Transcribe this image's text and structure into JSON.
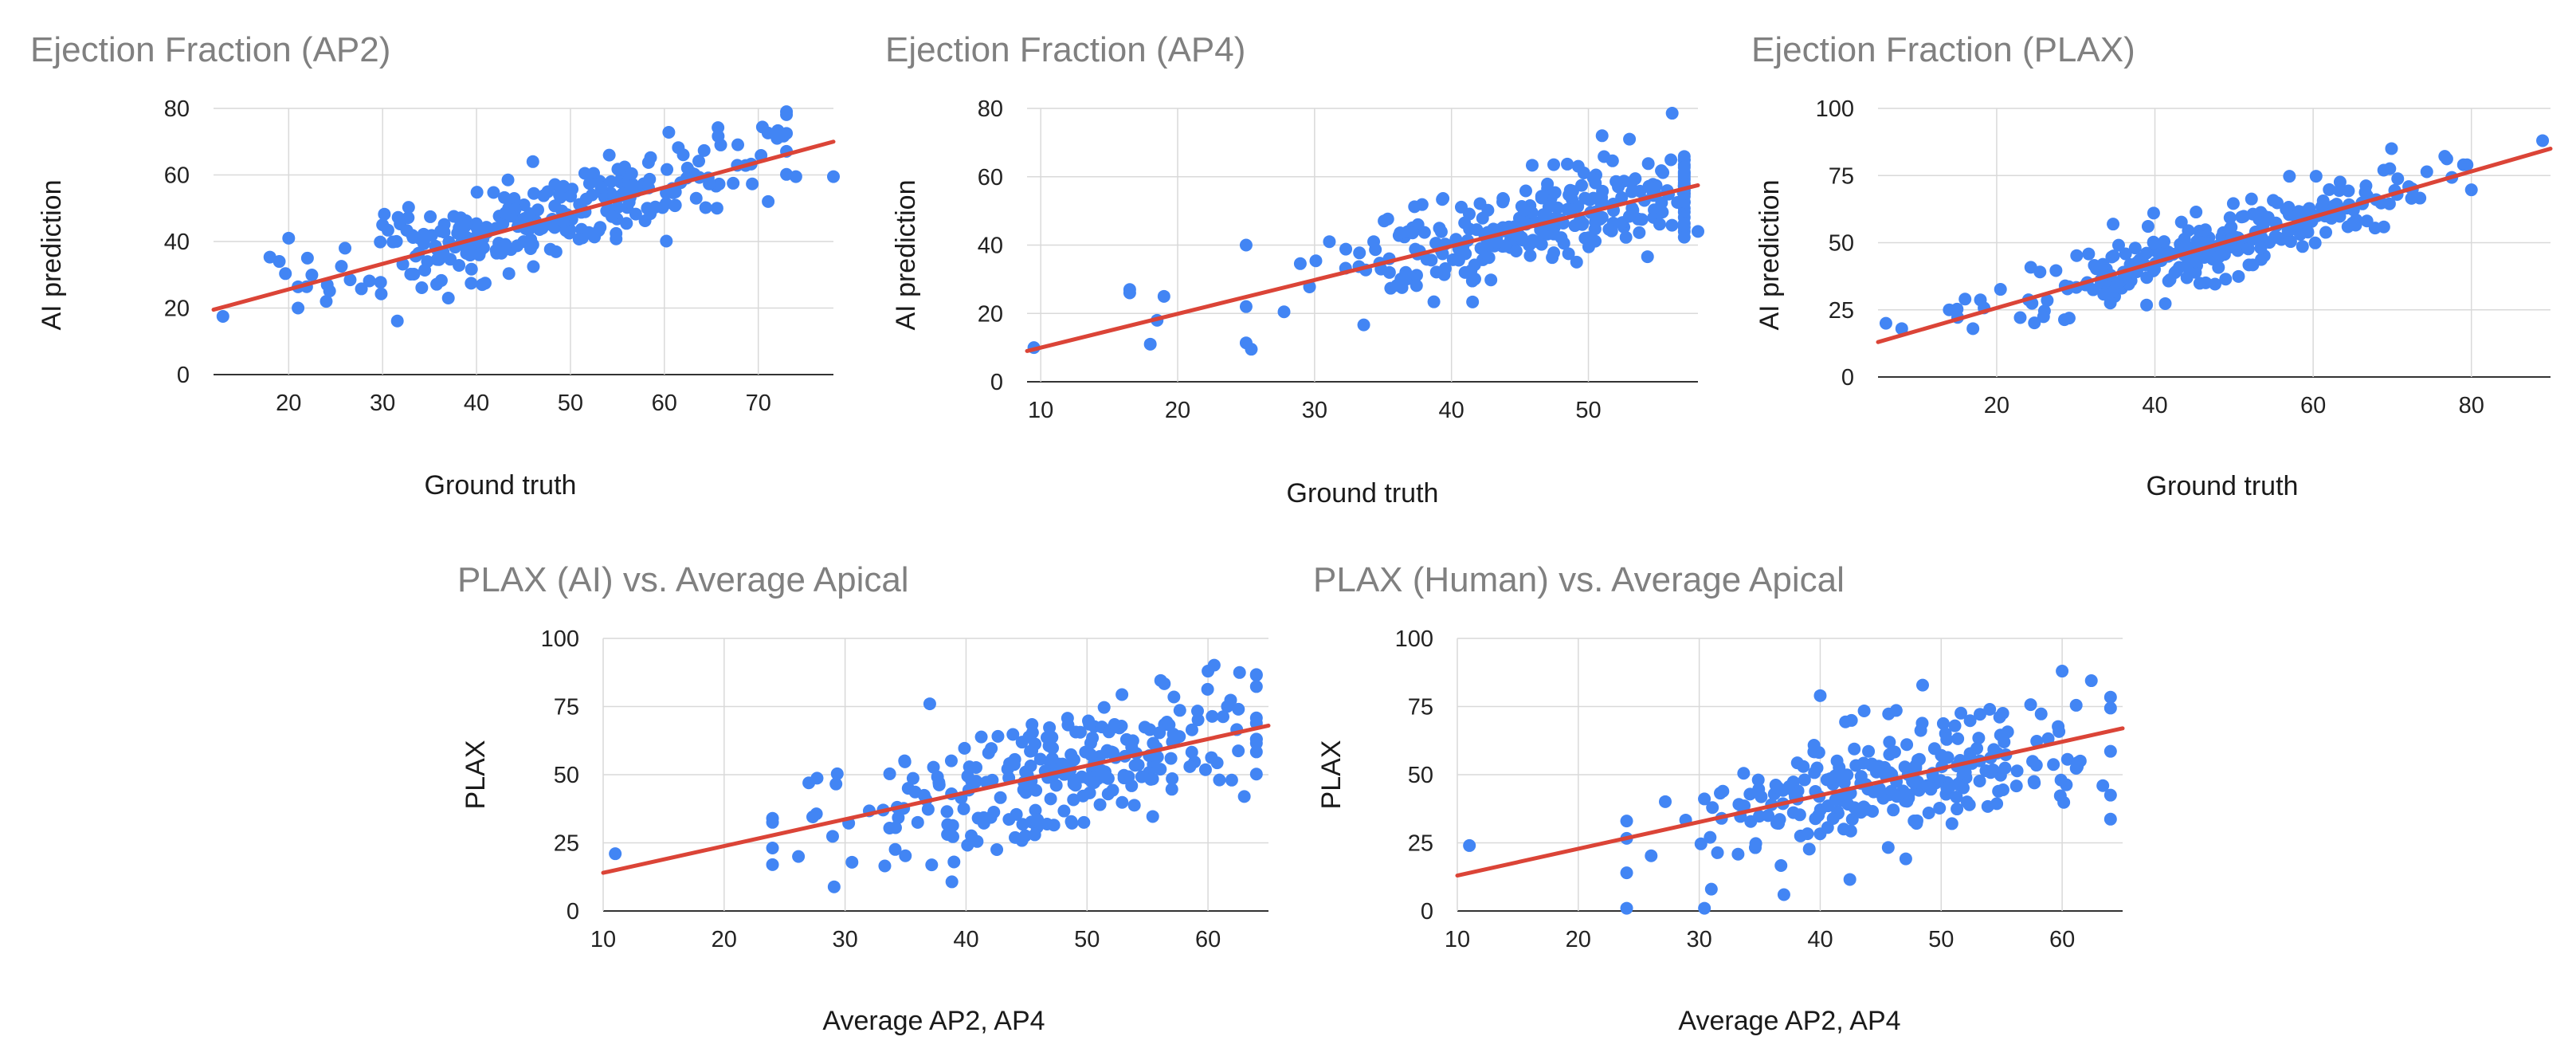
{
  "colors": {
    "points": "#4285f4",
    "trendline": "#db4437",
    "title": "#808080",
    "grid": "#d9d9d9"
  },
  "chart_data": [
    {
      "type": "scatter",
      "title": "Ejection Fraction (AP2)",
      "xlabel": "Ground truth",
      "ylabel": "AI prediction",
      "xlim": [
        12,
        78
      ],
      "ylim": [
        0,
        80
      ],
      "xticks": [
        20,
        30,
        40,
        50,
        60,
        70
      ],
      "yticks": [
        0,
        20,
        40,
        60,
        80
      ],
      "trendline": {
        "x": [
          12,
          78
        ],
        "y": [
          19.5,
          70
        ]
      },
      "gen": {
        "n": 260,
        "xmin": 18,
        "xmax": 73,
        "xmu": 47,
        "xsd": 11,
        "slope": 0.77,
        "intercept": 10.3,
        "noise": 6.5,
        "seed": 11
      },
      "points": [
        [
          13,
          17.5
        ],
        [
          19,
          34
        ],
        [
          20,
          41
        ],
        [
          21,
          20
        ],
        [
          22,
          35
        ],
        [
          24,
          22
        ],
        [
          26,
          38
        ],
        [
          30,
          45
        ],
        [
          37,
          23
        ],
        [
          46,
          64
        ],
        [
          66,
          69
        ],
        [
          72,
          71
        ],
        [
          73,
          72.5
        ],
        [
          74,
          59.5
        ],
        [
          78,
          59.5
        ]
      ]
    },
    {
      "type": "scatter",
      "title": "Ejection Fraction (AP4)",
      "xlabel": "Ground truth",
      "ylabel": "AI prediction",
      "xlim": [
        9,
        58
      ],
      "ylim": [
        0,
        80
      ],
      "xticks": [
        10,
        20,
        30,
        40,
        50
      ],
      "yticks": [
        0,
        20,
        40,
        60,
        80
      ],
      "trendline": {
        "x": [
          9,
          58
        ],
        "y": [
          9,
          57.5
        ]
      },
      "gen": {
        "n": 270,
        "xmin": 25,
        "xmax": 57,
        "xmu": 46,
        "xsd": 8,
        "slope": 0.99,
        "intercept": 0.1,
        "noise": 7,
        "seed": 23
      },
      "points": [
        [
          9.5,
          10
        ],
        [
          16.5,
          27
        ],
        [
          16.5,
          26
        ],
        [
          18,
          11
        ],
        [
          18.5,
          18
        ],
        [
          19,
          25
        ],
        [
          25,
          40
        ],
        [
          25,
          22
        ],
        [
          51,
          72
        ],
        [
          53,
          71
        ],
        [
          58,
          44
        ]
      ]
    },
    {
      "type": "scatter",
      "title": "Ejection Fraction (PLAX)",
      "xlabel": "Ground truth",
      "ylabel": "AI prediction",
      "xlim": [
        5,
        90
      ],
      "ylim": [
        0,
        100
      ],
      "xticks": [
        20,
        40,
        60,
        80
      ],
      "yticks": [
        0,
        25,
        50,
        75,
        100
      ],
      "trendline": {
        "x": [
          5,
          90
        ],
        "y": [
          13,
          85
        ]
      },
      "gen": {
        "n": 270,
        "xmin": 15,
        "xmax": 80,
        "xmu": 50,
        "xsd": 13,
        "slope": 0.85,
        "intercept": 8.8,
        "noise": 6,
        "seed": 37
      },
      "points": [
        [
          6,
          20
        ],
        [
          8,
          18
        ],
        [
          14,
          25
        ],
        [
          16,
          29
        ],
        [
          17,
          18
        ],
        [
          79,
          79
        ],
        [
          89,
          88
        ]
      ]
    },
    {
      "type": "scatter",
      "title": "PLAX (AI) vs. Average Apical",
      "xlabel": "Average AP2, AP4",
      "ylabel": "PLAX",
      "xlim": [
        10,
        65
      ],
      "ylim": [
        0,
        100
      ],
      "xticks": [
        10,
        20,
        30,
        40,
        50,
        60
      ],
      "yticks": [
        0,
        25,
        50,
        75,
        100
      ],
      "trendline": {
        "x": [
          10,
          65
        ],
        "y": [
          14,
          68
        ]
      },
      "gen": {
        "n": 250,
        "xmin": 24,
        "xmax": 64,
        "xmu": 47,
        "xsd": 9,
        "slope": 0.98,
        "intercept": 4.2,
        "noise": 11,
        "seed": 53
      },
      "points": [
        [
          11,
          21
        ],
        [
          24,
          17
        ],
        [
          24,
          34
        ],
        [
          27,
          47
        ],
        [
          37,
          76
        ],
        [
          39,
          18
        ],
        [
          60,
          88
        ],
        [
          63,
          42
        ]
      ]
    },
    {
      "type": "scatter",
      "title": "PLAX (Human) vs. Average Apical",
      "xlabel": "Average AP2, AP4",
      "ylabel": "PLAX",
      "xlim": [
        10,
        65
      ],
      "ylim": [
        0,
        100
      ],
      "xticks": [
        10,
        20,
        30,
        40,
        50,
        60
      ],
      "yticks": [
        0,
        25,
        50,
        75,
        100
      ],
      "trendline": {
        "x": [
          10,
          65
        ],
        "y": [
          13,
          67
        ]
      },
      "gen": {
        "n": 250,
        "xmin": 24,
        "xmax": 64,
        "xmu": 46,
        "xsd": 9,
        "slope": 0.98,
        "intercept": 3.2,
        "noise": 11,
        "seed": 71
      },
      "points": [
        [
          11,
          24
        ],
        [
          24,
          14
        ],
        [
          24,
          33
        ],
        [
          31,
          8
        ],
        [
          37,
          6
        ],
        [
          40,
          79
        ],
        [
          60,
          88
        ]
      ]
    }
  ]
}
